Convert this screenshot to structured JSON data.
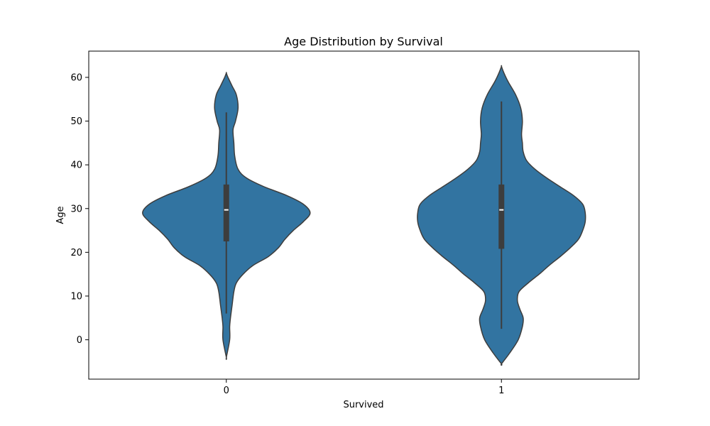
{
  "chart_data": {
    "type": "violin",
    "title": "Age Distribution by Survival",
    "xlabel": "Survived",
    "ylabel": "Age",
    "categories": [
      "0",
      "1"
    ],
    "ylim": [
      -9,
      66
    ],
    "y_ticks": [
      0,
      10,
      20,
      30,
      40,
      50,
      60
    ],
    "grid": false,
    "colors": {
      "violin_fill": "#3274a1",
      "outline": "#3d3d3d",
      "box": "#3d3d3d",
      "median": "#ffffff"
    },
    "violins": [
      {
        "category": "0",
        "range": [
          -4,
          61
        ],
        "box": {
          "q1": 22.5,
          "median": 29.7,
          "q3": 35.5,
          "whisker_low": 6,
          "whisker_high": 52
        },
        "density": [
          [
            -4,
            0.0
          ],
          [
            0,
            0.04
          ],
          [
            3,
            0.04
          ],
          [
            5,
            0.05
          ],
          [
            8,
            0.07
          ],
          [
            11,
            0.09
          ],
          [
            13,
            0.12
          ],
          [
            15,
            0.2
          ],
          [
            17,
            0.32
          ],
          [
            19,
            0.5
          ],
          [
            21,
            0.62
          ],
          [
            23,
            0.7
          ],
          [
            25,
            0.8
          ],
          [
            27,
            0.92
          ],
          [
            29,
            1.0
          ],
          [
            31,
            0.92
          ],
          [
            33,
            0.72
          ],
          [
            35,
            0.45
          ],
          [
            37,
            0.24
          ],
          [
            39,
            0.14
          ],
          [
            42,
            0.1
          ],
          [
            45,
            0.09
          ],
          [
            48,
            0.08
          ],
          [
            50,
            0.11
          ],
          [
            53,
            0.14
          ],
          [
            56,
            0.12
          ],
          [
            58,
            0.07
          ],
          [
            60,
            0.02
          ],
          [
            61,
            0.0
          ]
        ]
      },
      {
        "category": "1",
        "range": [
          -5.5,
          62.5
        ],
        "box": {
          "q1": 20.8,
          "median": 29.7,
          "q3": 35.5,
          "whisker_low": 2.5,
          "whisker_high": 54.5
        },
        "density": [
          [
            -5.5,
            0.0
          ],
          [
            -3,
            0.1
          ],
          [
            0,
            0.2
          ],
          [
            3,
            0.25
          ],
          [
            5,
            0.26
          ],
          [
            7,
            0.22
          ],
          [
            9,
            0.19
          ],
          [
            11,
            0.21
          ],
          [
            13,
            0.32
          ],
          [
            15,
            0.45
          ],
          [
            17,
            0.57
          ],
          [
            19,
            0.7
          ],
          [
            21,
            0.82
          ],
          [
            23,
            0.92
          ],
          [
            25,
            0.97
          ],
          [
            27,
            1.0
          ],
          [
            29,
            1.0
          ],
          [
            31,
            0.97
          ],
          [
            33,
            0.86
          ],
          [
            35,
            0.7
          ],
          [
            37,
            0.54
          ],
          [
            39,
            0.4
          ],
          [
            41,
            0.3
          ],
          [
            43,
            0.26
          ],
          [
            45,
            0.25
          ],
          [
            47,
            0.24
          ],
          [
            50,
            0.25
          ],
          [
            53,
            0.23
          ],
          [
            56,
            0.17
          ],
          [
            59,
            0.08
          ],
          [
            61,
            0.03
          ],
          [
            62.5,
            0.0
          ]
        ]
      }
    ]
  }
}
